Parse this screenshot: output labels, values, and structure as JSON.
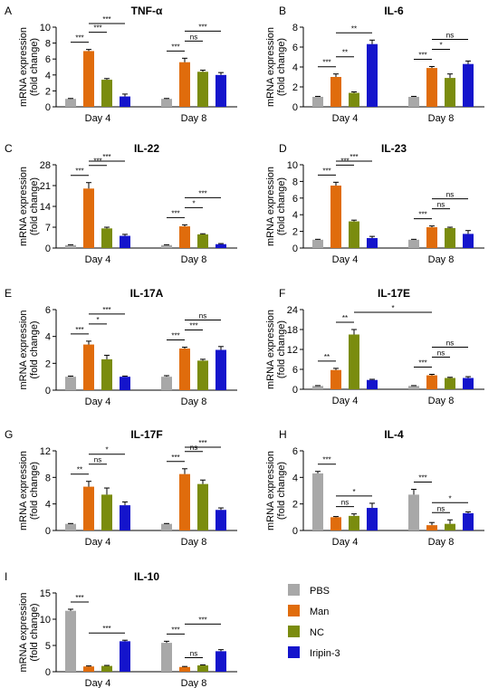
{
  "chart_data": [
    {
      "type": "bar",
      "panel": "A",
      "title": "TNF-α",
      "ylabel": [
        "mRNA expression",
        "(fold change)"
      ],
      "ylim": [
        0,
        10
      ],
      "yticks": [
        "0",
        "2",
        "4",
        "6",
        "8",
        "10"
      ],
      "categories": [
        "Day 4",
        "Day 8"
      ],
      "series": [
        {
          "name": "PBS",
          "values": [
            1.0,
            1.0
          ],
          "errors": [
            0.05,
            0.05
          ]
        },
        {
          "name": "Man",
          "values": [
            7.0,
            5.6
          ],
          "errors": [
            0.2,
            0.5
          ]
        },
        {
          "name": "NC",
          "values": [
            3.4,
            4.4
          ],
          "errors": [
            0.15,
            0.2
          ]
        },
        {
          "name": "Iripin-3",
          "values": [
            1.3,
            4.0
          ],
          "errors": [
            0.3,
            0.3
          ]
        }
      ],
      "significance": [
        {
          "group": 0,
          "from": 0,
          "to": 1,
          "label": "***"
        },
        {
          "group": 0,
          "from": 1,
          "to": 2,
          "label": "***"
        },
        {
          "group": 0,
          "from": 1,
          "to": 3,
          "label": "***"
        },
        {
          "group": 1,
          "from": 0,
          "to": 1,
          "label": "***"
        },
        {
          "group": 1,
          "from": 1,
          "to": 2,
          "label": "ns"
        },
        {
          "group": 1,
          "from": 1,
          "to": 3,
          "label": "***"
        }
      ]
    },
    {
      "type": "bar",
      "panel": "B",
      "title": "IL-6",
      "ylabel": [
        "mRNA expression",
        "(fold change)"
      ],
      "ylim": [
        0,
        8
      ],
      "yticks": [
        "0",
        "2",
        "4",
        "6",
        "8"
      ],
      "categories": [
        "Day 4",
        "Day 8"
      ],
      "series": [
        {
          "name": "PBS",
          "values": [
            1.0,
            1.0
          ],
          "errors": [
            0.05,
            0.05
          ]
        },
        {
          "name": "Man",
          "values": [
            3.0,
            3.9
          ],
          "errors": [
            0.3,
            0.15
          ]
        },
        {
          "name": "NC",
          "values": [
            1.4,
            2.9
          ],
          "errors": [
            0.1,
            0.4
          ]
        },
        {
          "name": "Iripin-3",
          "values": [
            6.3,
            4.3
          ],
          "errors": [
            0.4,
            0.3
          ]
        }
      ],
      "significance": [
        {
          "group": 0,
          "from": 0,
          "to": 1,
          "label": "***"
        },
        {
          "group": 0,
          "from": 1,
          "to": 2,
          "label": "**"
        },
        {
          "group": 0,
          "from": 1,
          "to": 3,
          "label": "**"
        },
        {
          "group": 1,
          "from": 0,
          "to": 1,
          "label": "***"
        },
        {
          "group": 1,
          "from": 1,
          "to": 2,
          "label": "*"
        },
        {
          "group": 1,
          "from": 1,
          "to": 3,
          "label": "ns"
        }
      ]
    },
    {
      "type": "bar",
      "panel": "C",
      "title": "IL-22",
      "ylabel": [
        "mRNA expression",
        "(fold change)"
      ],
      "ylim": [
        0,
        28
      ],
      "yticks": [
        "0",
        "7",
        "14",
        "21",
        "28"
      ],
      "categories": [
        "Day 4",
        "Day 8"
      ],
      "series": [
        {
          "name": "PBS",
          "values": [
            1.0,
            1.0
          ],
          "errors": [
            0.1,
            0.1
          ]
        },
        {
          "name": "Man",
          "values": [
            20.0,
            7.3
          ],
          "errors": [
            2.0,
            0.5
          ]
        },
        {
          "name": "NC",
          "values": [
            6.6,
            4.6
          ],
          "errors": [
            0.4,
            0.2
          ]
        },
        {
          "name": "Iripin-3",
          "values": [
            4.1,
            1.3
          ],
          "errors": [
            0.5,
            0.2
          ]
        }
      ],
      "significance": [
        {
          "group": 0,
          "from": 0,
          "to": 1,
          "label": "***"
        },
        {
          "group": 0,
          "from": 1,
          "to": 2,
          "label": "***"
        },
        {
          "group": 0,
          "from": 1,
          "to": 3,
          "label": "***"
        },
        {
          "group": 1,
          "from": 0,
          "to": 1,
          "label": "***"
        },
        {
          "group": 1,
          "from": 1,
          "to": 2,
          "label": "*"
        },
        {
          "group": 1,
          "from": 1,
          "to": 3,
          "label": "***"
        }
      ]
    },
    {
      "type": "bar",
      "panel": "D",
      "title": "IL-23",
      "ylabel": [
        "mRNA expression",
        "(fold change)"
      ],
      "ylim": [
        0,
        10
      ],
      "yticks": [
        "0",
        "2",
        "4",
        "6",
        "8",
        "10"
      ],
      "categories": [
        "Day 4",
        "Day 8"
      ],
      "series": [
        {
          "name": "PBS",
          "values": [
            1.0,
            1.0
          ],
          "errors": [
            0.05,
            0.05
          ]
        },
        {
          "name": "Man",
          "values": [
            7.5,
            2.5
          ],
          "errors": [
            0.4,
            0.15
          ]
        },
        {
          "name": "NC",
          "values": [
            3.2,
            2.4
          ],
          "errors": [
            0.15,
            0.1
          ]
        },
        {
          "name": "Iripin-3",
          "values": [
            1.2,
            1.7
          ],
          "errors": [
            0.2,
            0.4
          ]
        }
      ],
      "significance": [
        {
          "group": 0,
          "from": 0,
          "to": 1,
          "label": "***"
        },
        {
          "group": 0,
          "from": 1,
          "to": 2,
          "label": "***"
        },
        {
          "group": 0,
          "from": 1,
          "to": 3,
          "label": "***"
        },
        {
          "group": 1,
          "from": 0,
          "to": 1,
          "label": "***"
        },
        {
          "group": 1,
          "from": 1,
          "to": 2,
          "label": "ns"
        },
        {
          "group": 1,
          "from": 1,
          "to": 3,
          "label": "ns"
        }
      ]
    },
    {
      "type": "bar",
      "panel": "E",
      "title": "IL-17A",
      "ylabel": [
        "mRNA expression",
        "(fold change)"
      ],
      "ylim": [
        0,
        6
      ],
      "yticks": [
        "0",
        "2",
        "4",
        "6"
      ],
      "categories": [
        "Day 4",
        "Day 8"
      ],
      "series": [
        {
          "name": "PBS",
          "values": [
            1.0,
            1.0
          ],
          "errors": [
            0.05,
            0.08
          ]
        },
        {
          "name": "Man",
          "values": [
            3.4,
            3.1
          ],
          "errors": [
            0.25,
            0.1
          ]
        },
        {
          "name": "NC",
          "values": [
            2.3,
            2.2
          ],
          "errors": [
            0.3,
            0.1
          ]
        },
        {
          "name": "Iripin-3",
          "values": [
            1.0,
            3.0
          ],
          "errors": [
            0.05,
            0.25
          ]
        }
      ],
      "significance": [
        {
          "group": 0,
          "from": 0,
          "to": 1,
          "label": "***"
        },
        {
          "group": 0,
          "from": 1,
          "to": 2,
          "label": "*"
        },
        {
          "group": 0,
          "from": 1,
          "to": 3,
          "label": "***"
        },
        {
          "group": 1,
          "from": 0,
          "to": 1,
          "label": "***"
        },
        {
          "group": 1,
          "from": 1,
          "to": 2,
          "label": "***"
        },
        {
          "group": 1,
          "from": 1,
          "to": 3,
          "label": "ns"
        }
      ]
    },
    {
      "type": "bar",
      "panel": "F",
      "title": "IL-17E",
      "ylabel": [
        "mRNA expression",
        "(fold change)"
      ],
      "ylim": [
        0,
        24
      ],
      "yticks": [
        "0",
        "6",
        "12",
        "18",
        "24"
      ],
      "categories": [
        "Day 4",
        "Day 8"
      ],
      "series": [
        {
          "name": "PBS",
          "values": [
            1.0,
            1.0
          ],
          "errors": [
            0.1,
            0.1
          ]
        },
        {
          "name": "Man",
          "values": [
            5.8,
            4.2
          ],
          "errors": [
            0.5,
            0.3
          ]
        },
        {
          "name": "NC",
          "values": [
            16.5,
            3.4
          ],
          "errors": [
            1.5,
            0.2
          ]
        },
        {
          "name": "Iripin-3",
          "values": [
            2.8,
            3.4
          ],
          "errors": [
            0.2,
            0.4
          ]
        }
      ],
      "significance": [
        {
          "group": 0,
          "from": 0,
          "to": 1,
          "label": "**"
        },
        {
          "group": 0,
          "from": 1,
          "to": 2,
          "label": "**"
        },
        {
          "group": 0,
          "from": 2,
          "to": 5,
          "label": "*"
        },
        {
          "group": 1,
          "from": 0,
          "to": 1,
          "label": "***"
        },
        {
          "group": 1,
          "from": 1,
          "to": 2,
          "label": "ns"
        },
        {
          "group": 1,
          "from": 1,
          "to": 3,
          "label": "ns"
        }
      ]
    },
    {
      "type": "bar",
      "panel": "G",
      "title": "IL-17F",
      "ylabel": [
        "mRNA expression",
        "(fold change)"
      ],
      "ylim": [
        0,
        12
      ],
      "yticks": [
        "0",
        "4",
        "8",
        "12"
      ],
      "categories": [
        "Day 4",
        "Day 8"
      ],
      "series": [
        {
          "name": "PBS",
          "values": [
            1.0,
            1.0
          ],
          "errors": [
            0.05,
            0.05
          ]
        },
        {
          "name": "Man",
          "values": [
            6.6,
            8.5
          ],
          "errors": [
            0.8,
            0.8
          ]
        },
        {
          "name": "NC",
          "values": [
            5.4,
            7.0
          ],
          "errors": [
            1.0,
            0.6
          ]
        },
        {
          "name": "Iripin-3",
          "values": [
            3.8,
            3.1
          ],
          "errors": [
            0.5,
            0.3
          ]
        }
      ],
      "significance": [
        {
          "group": 0,
          "from": 0,
          "to": 1,
          "label": "**"
        },
        {
          "group": 0,
          "from": 1,
          "to": 2,
          "label": "ns"
        },
        {
          "group": 0,
          "from": 1,
          "to": 3,
          "label": "*"
        },
        {
          "group": 1,
          "from": 0,
          "to": 1,
          "label": "***"
        },
        {
          "group": 1,
          "from": 1,
          "to": 2,
          "label": "ns"
        },
        {
          "group": 1,
          "from": 1,
          "to": 3,
          "label": "***"
        }
      ]
    },
    {
      "type": "bar",
      "panel": "H",
      "title": "IL-4",
      "ylabel": [
        "mRNA expression",
        "(fold change)"
      ],
      "ylim": [
        0,
        6
      ],
      "yticks": [
        "0",
        "2",
        "4",
        "6"
      ],
      "categories": [
        "Day 4",
        "Day 8"
      ],
      "series": [
        {
          "name": "PBS",
          "values": [
            4.3,
            2.7
          ],
          "errors": [
            0.15,
            0.4
          ]
        },
        {
          "name": "Man",
          "values": [
            1.0,
            0.4
          ],
          "errors": [
            0.05,
            0.2
          ]
        },
        {
          "name": "NC",
          "values": [
            1.1,
            0.5
          ],
          "errors": [
            0.15,
            0.3
          ]
        },
        {
          "name": "Iripin-3",
          "values": [
            1.7,
            1.3
          ],
          "errors": [
            0.35,
            0.1
          ]
        }
      ],
      "significance": [
        {
          "group": 0,
          "from": 0,
          "to": 1,
          "label": "***"
        },
        {
          "group": 0,
          "from": 1,
          "to": 2,
          "label": "ns"
        },
        {
          "group": 0,
          "from": 1,
          "to": 3,
          "label": "*"
        },
        {
          "group": 1,
          "from": 0,
          "to": 1,
          "label": "***"
        },
        {
          "group": 1,
          "from": 1,
          "to": 2,
          "label": "ns"
        },
        {
          "group": 1,
          "from": 1,
          "to": 3,
          "label": "*"
        }
      ]
    },
    {
      "type": "bar",
      "panel": "I",
      "title": "IL-10",
      "ylabel": [
        "mRNA expression",
        "(fold change)"
      ],
      "ylim": [
        0,
        15
      ],
      "yticks": [
        "0",
        "5",
        "10",
        "15"
      ],
      "categories": [
        "Day 4",
        "Day 8"
      ],
      "series": [
        {
          "name": "PBS",
          "values": [
            11.6,
            5.5
          ],
          "errors": [
            0.3,
            0.3
          ]
        },
        {
          "name": "Man",
          "values": [
            1.0,
            0.9
          ],
          "errors": [
            0.1,
            0.1
          ]
        },
        {
          "name": "NC",
          "values": [
            1.1,
            1.2
          ],
          "errors": [
            0.1,
            0.1
          ]
        },
        {
          "name": "Iripin-3",
          "values": [
            5.8,
            3.9
          ],
          "errors": [
            0.2,
            0.3
          ]
        }
      ],
      "significance": [
        {
          "group": 0,
          "from": 0,
          "to": 1,
          "label": "***"
        },
        {
          "group": 0,
          "from": 1,
          "to": 3,
          "label": "***"
        },
        {
          "group": 1,
          "from": 0,
          "to": 1,
          "label": "***"
        },
        {
          "group": 1,
          "from": 1,
          "to": 2,
          "label": "ns"
        },
        {
          "group": 1,
          "from": 1,
          "to": 3,
          "label": "***"
        }
      ]
    }
  ],
  "legend": {
    "items": [
      {
        "label": "PBS",
        "color": "#a8a8a8"
      },
      {
        "label": "Man",
        "color": "#e06c0c"
      },
      {
        "label": "NC",
        "color": "#7a8c0e"
      },
      {
        "label": "Iripin-3",
        "color": "#1414cc"
      }
    ]
  },
  "colors": {
    "PBS": "#a8a8a8",
    "Man": "#e06c0c",
    "NC": "#7a8c0e",
    "Iripin-3": "#1414cc"
  }
}
